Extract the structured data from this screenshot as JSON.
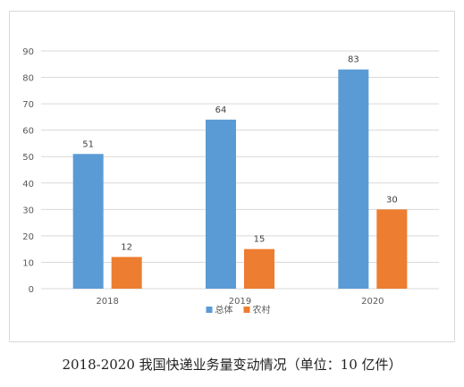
{
  "caption": "2018-2020 我国快递业务量变动情况（单位：10 亿件）",
  "colors": {
    "总体": "#5b9bd5",
    "农村": "#ed7d31",
    "grid": "#d9d9d9"
  },
  "chart_data": {
    "type": "bar",
    "categories": [
      "2018",
      "2019",
      "2020"
    ],
    "series": [
      {
        "name": "总体",
        "values": [
          51,
          64,
          83
        ]
      },
      {
        "name": "农村",
        "values": [
          12,
          15,
          30
        ]
      }
    ],
    "title": "",
    "xlabel": "",
    "ylabel": "",
    "ylim": [
      0,
      90
    ],
    "yticks": [
      0,
      10,
      20,
      30,
      40,
      50,
      60,
      70,
      80,
      90
    ],
    "grid": true,
    "legend": "bottom"
  }
}
